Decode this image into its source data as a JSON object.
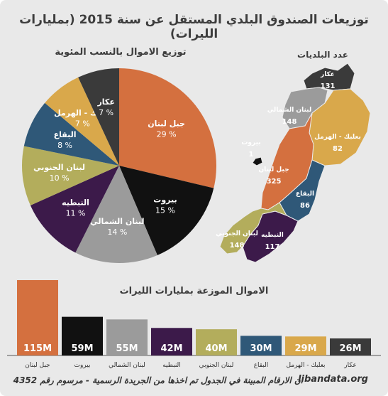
{
  "title": "توزيعات الصندوق البلدي المستقل عن سنة 2015 (بمليارات الليرات)",
  "footer": {
    "note": "ان الارقام المبينة في الجدول تم اخذها من الجريدة الرسمية - مرسوم رقم 4352",
    "site": "libandata.org"
  },
  "colors": {
    "mount_lebanon": "#d4703f",
    "beirut": "#111111",
    "north": "#9b9b9b",
    "nabatieh": "#3c1a4a",
    "south": "#b3ad5c",
    "bekaa": "#2f5878",
    "baalbek_hermel": "#d9a84b",
    "akkar": "#3a3a3a"
  },
  "map": {
    "title": "عدد البلديات",
    "regions": [
      {
        "name": "عكار",
        "count": "131"
      },
      {
        "name": "لبنان الشمالي",
        "count": "148"
      },
      {
        "name": "بعلبك - الهرمل",
        "count": "82"
      },
      {
        "name": "بيروت",
        "count": "1"
      },
      {
        "name": "جبل لبنان",
        "count": "325"
      },
      {
        "name": "البقاع",
        "count": "86"
      },
      {
        "name": "النبطيه",
        "count": "117"
      },
      {
        "name": "لبنان الجنوبي",
        "count": "148"
      }
    ]
  },
  "chart_data": [
    {
      "type": "pie",
      "title": "توزيع الاموال بالنسب المئوية",
      "slices": [
        {
          "label": "جبل لبنان",
          "value": 29,
          "display": "29 %",
          "color": "#d4703f"
        },
        {
          "label": "بيروت",
          "value": 15,
          "display": "15 %",
          "color": "#111111"
        },
        {
          "label": "لبنان الشمالي",
          "value": 14,
          "display": "14 %",
          "color": "#9b9b9b"
        },
        {
          "label": "النبطيه",
          "value": 11,
          "display": "11 %",
          "color": "#3c1a4a"
        },
        {
          "label": "لبنان الجنوبي",
          "value": 10,
          "display": "10 %",
          "color": "#b3ad5c"
        },
        {
          "label": "البقاع",
          "value": 8,
          "display": "8 %",
          "color": "#2f5878"
        },
        {
          "label": "بعلبك - الهرمل",
          "value": 7,
          "display": "7 %",
          "color": "#d9a84b"
        },
        {
          "label": "عكار",
          "value": 7,
          "display": "7 %",
          "color": "#3a3a3a"
        }
      ]
    },
    {
      "type": "bar",
      "title": "الاموال الموزعة بمليارات الليرات",
      "categories": [
        "جبل لبنان",
        "بيروت",
        "لبنان الشمالي",
        "النبطيه",
        "لبنان الجنوبي",
        "البقاع",
        "بعلبك - الهرمل",
        "عكار"
      ],
      "values": [
        115,
        59,
        55,
        42,
        40,
        30,
        29,
        26
      ],
      "labels": [
        "115M",
        "59M",
        "55M",
        "42M",
        "40M",
        "30M",
        "29M",
        "26M"
      ],
      "colors": [
        "#d4703f",
        "#111111",
        "#9b9b9b",
        "#3c1a4a",
        "#b3ad5c",
        "#2f5878",
        "#d9a84b",
        "#3a3a3a"
      ],
      "ylim": [
        0,
        115
      ]
    }
  ]
}
